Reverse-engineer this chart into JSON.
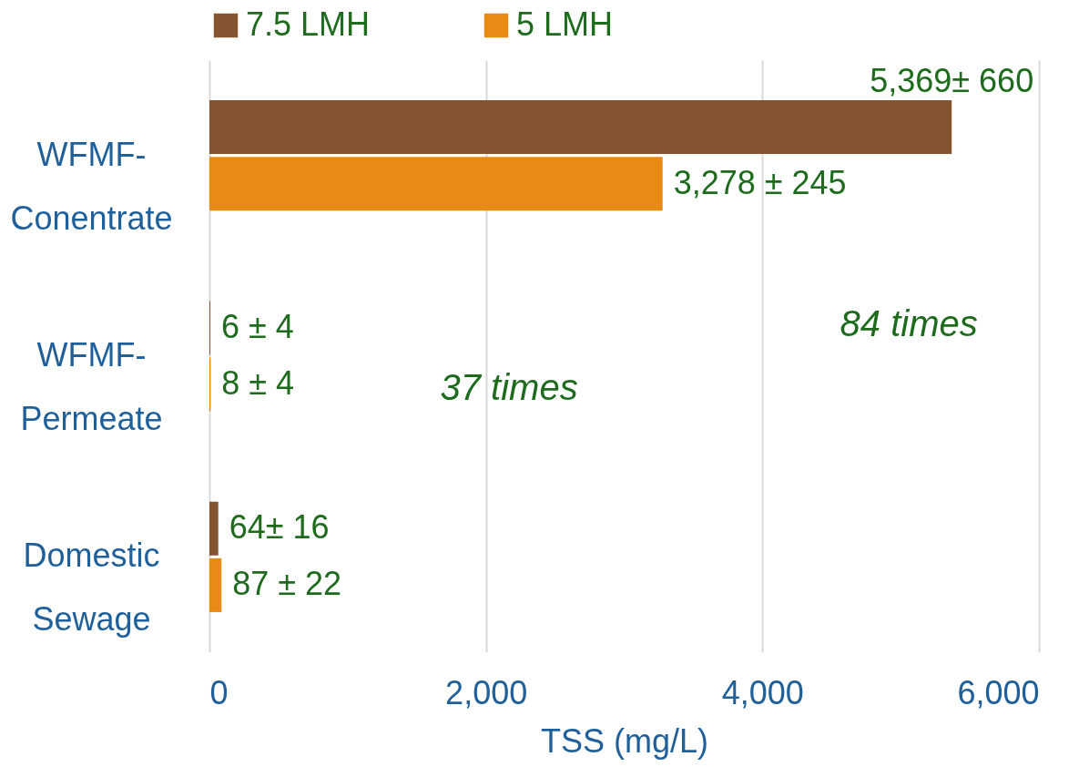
{
  "chart_data": {
    "type": "bar",
    "orientation": "horizontal",
    "categories": [
      "WFMF- Conentrate",
      "WFMF- Permeate",
      "Domestic Sewage"
    ],
    "series": [
      {
        "name": "7.5 LMH",
        "color": "#84532f",
        "values": [
          5369,
          6,
          64
        ],
        "value_labels": [
          "5,369± 660",
          "6 ± 4",
          "64± 16"
        ]
      },
      {
        "name": "5 LMH",
        "color": "#e88a14",
        "values": [
          3278,
          8,
          87
        ],
        "value_labels": [
          "3,278 ± 245",
          "8 ± 4",
          "87 ± 22"
        ]
      }
    ],
    "xlabel": "TSS (mg/L)",
    "xlim": [
      0,
      6000
    ],
    "xticks": [
      0,
      {
        "value": 2000,
        "label": "2,000"
      },
      {
        "value": 4000,
        "label": "4,000"
      },
      {
        "value": 6000,
        "label": "6,000"
      }
    ],
    "grid": "x",
    "legend": "top",
    "annotations": [
      "37 times",
      "84 times"
    ]
  }
}
